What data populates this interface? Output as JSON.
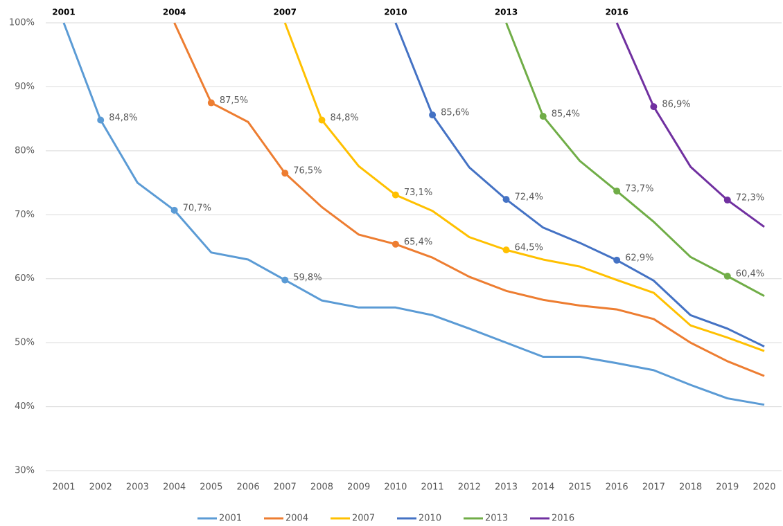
{
  "chart_data": {
    "type": "line",
    "categories": [
      "2001",
      "2002",
      "2003",
      "2004",
      "2005",
      "2006",
      "2007",
      "2008",
      "2009",
      "2010",
      "2011",
      "2012",
      "2013",
      "2014",
      "2015",
      "2016",
      "2017",
      "2018",
      "2019",
      "2020"
    ],
    "ylim": [
      30,
      100
    ],
    "yticks": [
      {
        "value": 30,
        "label": "30%"
      },
      {
        "value": 40,
        "label": "40%"
      },
      {
        "value": 50,
        "label": "50%"
      },
      {
        "value": 60,
        "label": "60%"
      },
      {
        "value": 70,
        "label": "70%"
      },
      {
        "value": 80,
        "label": "80%"
      },
      {
        "value": 90,
        "label": "90%"
      },
      {
        "value": 100,
        "label": "100%"
      }
    ],
    "grid": true,
    "legend": "bottom",
    "series": [
      {
        "name": "2001",
        "color": "#5B9BD5",
        "values": [
          100,
          84.8,
          75.0,
          70.7,
          64.1,
          63.0,
          59.8,
          56.6,
          55.5,
          55.5,
          54.3,
          52.2,
          50.0,
          47.8,
          47.8,
          46.8,
          45.7,
          43.4,
          41.3,
          40.3
        ],
        "value_labels": [
          null,
          "84,8%",
          null,
          "70,7%",
          null,
          null,
          "59,8%",
          null,
          null,
          null,
          null,
          null,
          null,
          null,
          null,
          null,
          null,
          null,
          null,
          null
        ]
      },
      {
        "name": "2004",
        "color": "#ED7D31",
        "values": [
          null,
          null,
          null,
          100,
          87.5,
          84.5,
          76.5,
          71.2,
          66.9,
          65.4,
          63.3,
          60.3,
          58.1,
          56.7,
          55.8,
          55.2,
          53.7,
          50.0,
          47.1,
          44.8
        ],
        "value_labels": [
          null,
          null,
          null,
          null,
          "87,5%",
          null,
          "76,5%",
          null,
          null,
          "65,4%",
          null,
          null,
          null,
          null,
          null,
          null,
          null,
          null,
          null,
          null
        ]
      },
      {
        "name": "2007",
        "color": "#FFC000",
        "values": [
          null,
          null,
          null,
          null,
          null,
          null,
          100,
          84.8,
          77.6,
          73.1,
          70.6,
          66.5,
          64.5,
          63.0,
          61.9,
          59.8,
          57.8,
          52.7,
          50.8,
          48.7
        ],
        "value_labels": [
          null,
          null,
          null,
          null,
          null,
          null,
          null,
          "84,8%",
          null,
          "73,1%",
          null,
          null,
          "64,5%",
          null,
          null,
          null,
          null,
          null,
          null,
          null
        ]
      },
      {
        "name": "2010",
        "color": "#4472C4",
        "values": [
          null,
          null,
          null,
          null,
          null,
          null,
          null,
          null,
          null,
          100,
          85.6,
          77.4,
          72.4,
          68.0,
          65.6,
          62.9,
          59.7,
          54.3,
          52.2,
          49.4
        ],
        "value_labels": [
          null,
          null,
          null,
          null,
          null,
          null,
          null,
          null,
          null,
          null,
          "85,6%",
          null,
          "72,4%",
          null,
          null,
          "62,9%",
          null,
          null,
          null,
          null
        ]
      },
      {
        "name": "2013",
        "color": "#70AD47",
        "values": [
          null,
          null,
          null,
          null,
          null,
          null,
          null,
          null,
          null,
          null,
          null,
          null,
          100,
          85.4,
          78.4,
          73.7,
          68.9,
          63.4,
          60.4,
          57.3
        ],
        "value_labels": [
          null,
          null,
          null,
          null,
          null,
          null,
          null,
          null,
          null,
          null,
          null,
          null,
          null,
          "85,4%",
          null,
          "73,7%",
          null,
          null,
          "60,4%",
          null
        ]
      },
      {
        "name": "2016",
        "color": "#7030A0",
        "values": [
          null,
          null,
          null,
          null,
          null,
          null,
          null,
          null,
          null,
          null,
          null,
          null,
          null,
          null,
          null,
          100,
          86.9,
          77.5,
          72.3,
          68.1
        ],
        "value_labels": [
          null,
          null,
          null,
          null,
          null,
          null,
          null,
          null,
          null,
          null,
          null,
          null,
          null,
          null,
          null,
          null,
          "86,9%",
          null,
          "72,3%",
          null
        ]
      }
    ]
  }
}
